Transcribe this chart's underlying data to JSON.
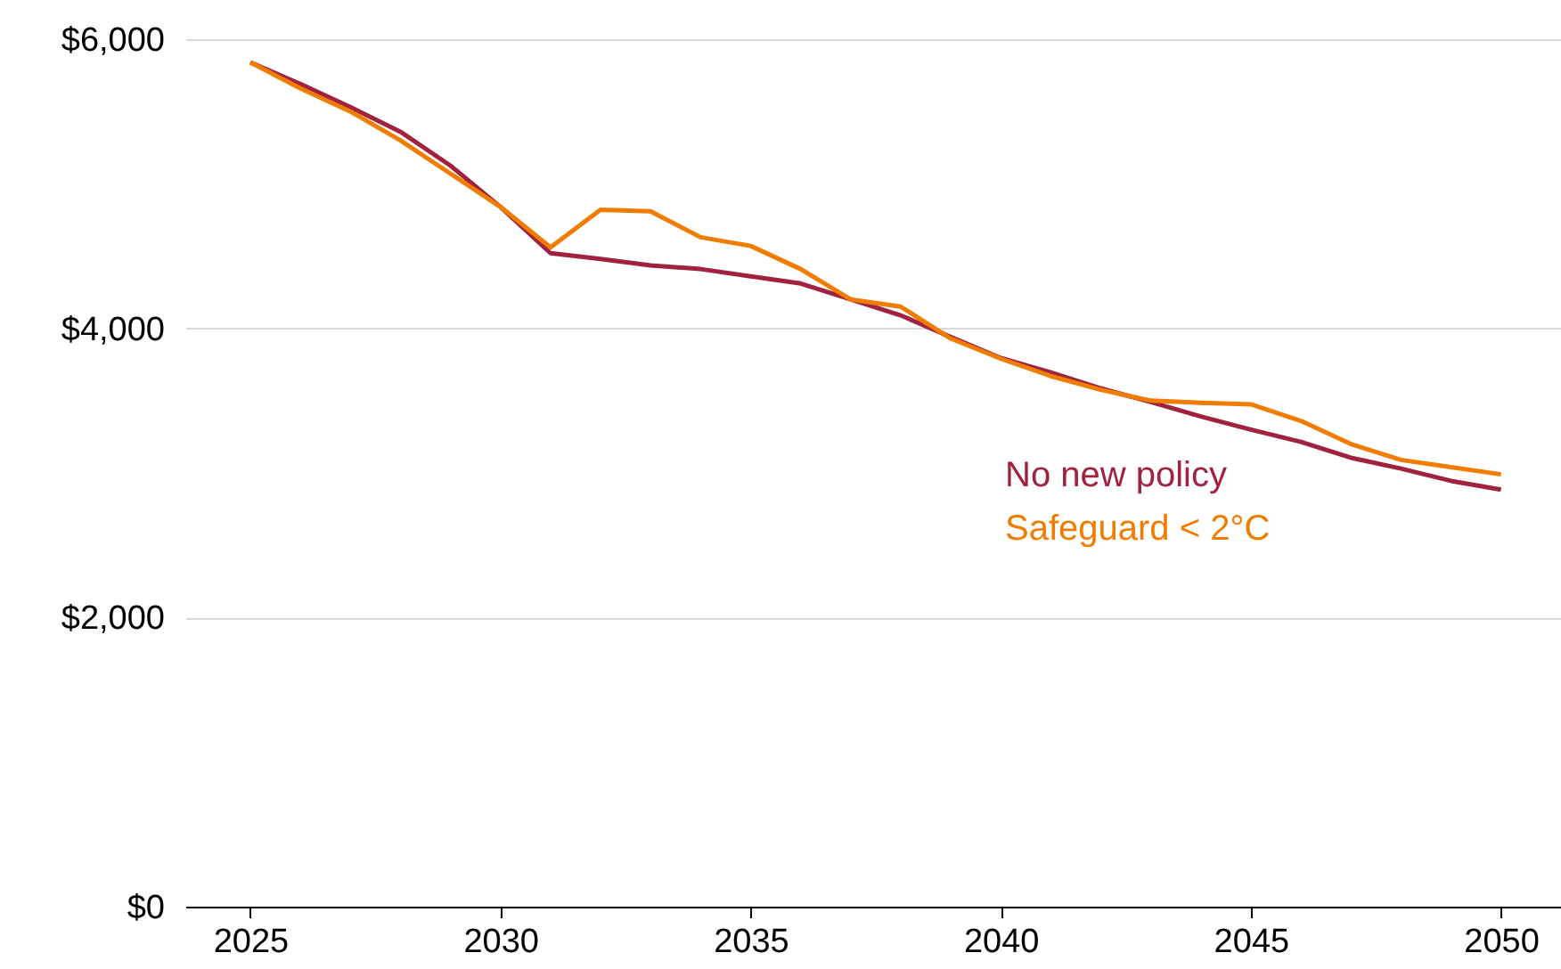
{
  "chart_data": {
    "type": "line",
    "x": [
      2025,
      2026,
      2027,
      2028,
      2029,
      2030,
      2031,
      2032,
      2033,
      2034,
      2035,
      2036,
      2037,
      2038,
      2039,
      2040,
      2041,
      2042,
      2043,
      2044,
      2045,
      2046,
      2047,
      2048,
      2049,
      2050
    ],
    "series": [
      {
        "name": "No new policy",
        "color": "#a0223f",
        "values": [
          5840,
          5690,
          5530,
          5360,
          5125,
          4840,
          4520,
          4480,
          4435,
          4410,
          4360,
          4310,
          4200,
          4090,
          3940,
          3795,
          3695,
          3585,
          3490,
          3390,
          3300,
          3215,
          3105,
          3030,
          2945,
          2885
        ]
      },
      {
        "name": "Safeguard < 2°C",
        "color": "#f07c00",
        "values": [
          5840,
          5660,
          5500,
          5300,
          5070,
          4840,
          4560,
          4820,
          4810,
          4630,
          4570,
          4410,
          4200,
          4150,
          3930,
          3790,
          3670,
          3575,
          3500,
          3485,
          3475,
          3360,
          3200,
          3090,
          3040,
          2990
        ]
      }
    ],
    "xlim": [
      2023.7,
      2051.2
    ],
    "xticks": [
      2025,
      2030,
      2035,
      2040,
      2045,
      2050
    ],
    "ylim": [
      0,
      6000
    ],
    "yticks": [
      {
        "value": 0,
        "label": "$0"
      },
      {
        "value": 2000,
        "label": "$2,000"
      },
      {
        "value": 4000,
        "label": "$4,000"
      },
      {
        "value": 6000,
        "label": "$6,000"
      }
    ],
    "grid": "y",
    "legend": false,
    "marker": "none",
    "line_style": "solid"
  }
}
